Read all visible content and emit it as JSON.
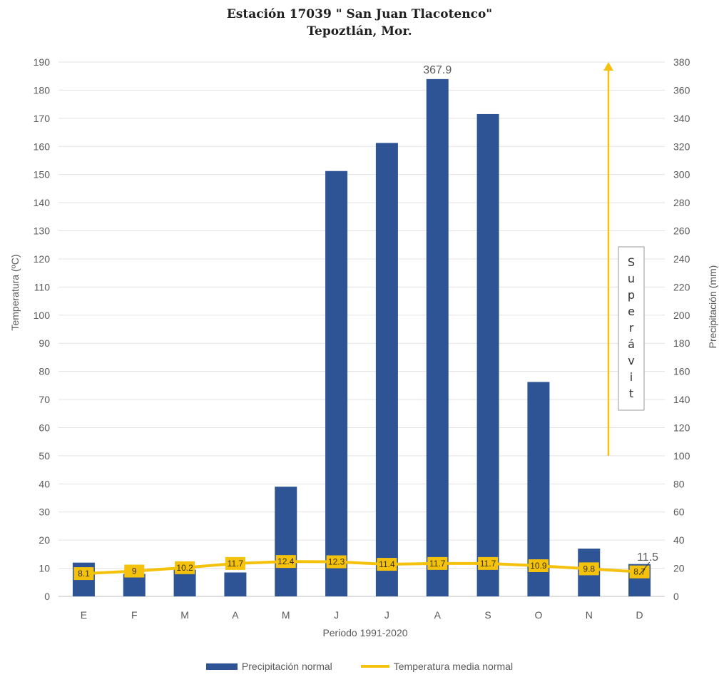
{
  "chart_data": {
    "type": "bar+line",
    "title": "Estación 17039 \" San Juan Tlacotenco\"",
    "subtitle": "Tepoztlán, Mor.",
    "xlabel": "Periodo 1991-2020",
    "ylabel_left": "Temperatura (ºC)",
    "ylabel_right": "Precipitación (mm)",
    "ylim_left": [
      0,
      190
    ],
    "yticks_left": [
      0,
      10,
      20,
      30,
      40,
      50,
      60,
      70,
      80,
      90,
      100,
      110,
      120,
      130,
      140,
      150,
      160,
      170,
      180,
      190
    ],
    "ylim_right": [
      0,
      380
    ],
    "yticks_right": [
      0,
      20,
      40,
      60,
      80,
      100,
      120,
      140,
      160,
      180,
      200,
      220,
      240,
      260,
      280,
      300,
      320,
      340,
      360,
      380
    ],
    "categories": [
      "E",
      "F",
      "M",
      "A",
      "M",
      "J",
      "J",
      "A",
      "S",
      "O",
      "N",
      "D"
    ],
    "grid": true,
    "legend_position": "bottom",
    "series": [
      {
        "name": "Precipitación normal",
        "type": "bar",
        "axis": "right",
        "color": "#2e5496",
        "values": [
          24,
          16,
          19,
          17,
          78,
          302.5,
          322.5,
          367.9,
          343,
          152.5,
          34,
          23
        ],
        "data_labels": {
          "7": "367.9"
        }
      },
      {
        "name": "Temperatura media normal",
        "type": "line",
        "axis": "left",
        "color": "#f4c20d",
        "values": [
          8.1,
          9,
          10.2,
          11.7,
          12.4,
          12.3,
          11.4,
          11.7,
          11.7,
          10.9,
          9.8,
          8.7
        ],
        "labels": [
          "8.1",
          "9",
          "10.2",
          "11.7",
          "12.4",
          "12.3",
          "11.4",
          "11.7",
          "11.7",
          "10.9",
          "9.8",
          "8.7"
        ]
      }
    ],
    "annotations": {
      "callout_value": "11.5",
      "vertical_text": "Superávit",
      "arrow_from": 100,
      "arrow_to": 380
    }
  }
}
